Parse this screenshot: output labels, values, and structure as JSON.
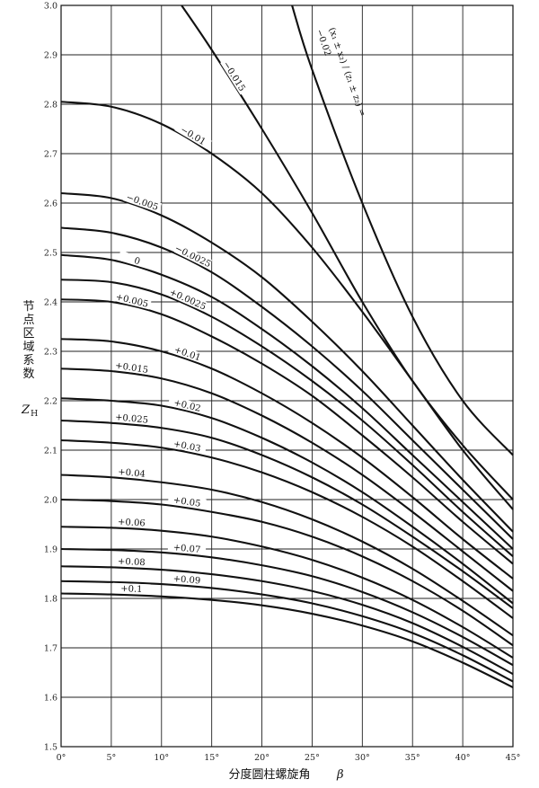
{
  "chart_data": {
    "type": "line",
    "title": "",
    "xlabel": "分度圆柱螺旋角",
    "xsymbol": "β",
    "ylabel": [
      "节",
      "点",
      "区",
      "域",
      "系",
      "数"
    ],
    "ysymbol": "Z",
    "ysymbol_sub": "H",
    "xlim": [
      0,
      45
    ],
    "ylim": [
      1.5,
      3.0
    ],
    "x_ticks": [
      0,
      5,
      10,
      15,
      20,
      25,
      30,
      35,
      40,
      45
    ],
    "x_tick_labels": [
      "0°",
      "5°",
      "10°",
      "15°",
      "20°",
      "25°",
      "30°",
      "35°",
      "40°",
      "45°"
    ],
    "y_ticks": [
      1.5,
      1.6,
      1.7,
      1.8,
      1.9,
      2.0,
      2.1,
      2.2,
      2.3,
      2.4,
      2.5,
      2.6,
      2.7,
      2.8,
      2.9,
      3.0
    ],
    "y_tick_labels": [
      "1.5",
      "1.6",
      "1.7",
      "1.8",
      "1.9",
      "2.0",
      "2.1",
      "2.2",
      "2.3",
      "2.4",
      "2.5",
      "2.6",
      "2.7",
      "2.8",
      "2.9",
      "3.0"
    ],
    "grid": true,
    "series_note_label": "(x₁ ± x₂) / (z₁ ± z₂) =",
    "series": [
      {
        "name": "−0.02",
        "x": [
          23.0,
          25,
          30,
          35,
          40,
          45
        ],
        "y": [
          3.0,
          2.87,
          2.6,
          2.37,
          2.2,
          2.09
        ]
      },
      {
        "name": "−0.015",
        "x": [
          12.0,
          15,
          20,
          25,
          30,
          35,
          40,
          45
        ],
        "y": [
          3.0,
          2.91,
          2.75,
          2.58,
          2.4,
          2.24,
          2.11,
          2.0
        ]
      },
      {
        "name": "−0.01",
        "x": [
          0,
          5,
          10,
          15,
          20,
          25,
          30,
          35,
          40,
          45
        ],
        "y": [
          2.805,
          2.795,
          2.76,
          2.7,
          2.62,
          2.51,
          2.38,
          2.24,
          2.1,
          1.98
        ]
      },
      {
        "name": "−0.005",
        "x": [
          0,
          5,
          10,
          15,
          20,
          25,
          30,
          35,
          40,
          45
        ],
        "y": [
          2.62,
          2.61,
          2.575,
          2.52,
          2.45,
          2.36,
          2.26,
          2.15,
          2.04,
          1.935
        ]
      },
      {
        "name": "−0.0025",
        "x": [
          0,
          5,
          10,
          15,
          20,
          25,
          30,
          35,
          40,
          45
        ],
        "y": [
          2.55,
          2.54,
          2.51,
          2.46,
          2.39,
          2.31,
          2.22,
          2.12,
          2.02,
          1.92
        ]
      },
      {
        "name": "0",
        "x": [
          0,
          5,
          10,
          15,
          20,
          25,
          30,
          35,
          40,
          45
        ],
        "y": [
          2.495,
          2.485,
          2.455,
          2.41,
          2.345,
          2.27,
          2.185,
          2.09,
          1.995,
          1.9
        ]
      },
      {
        "name": "+0.0025",
        "x": [
          0,
          5,
          10,
          15,
          20,
          25,
          30,
          35,
          40,
          45
        ],
        "y": [
          2.445,
          2.44,
          2.415,
          2.37,
          2.31,
          2.24,
          2.16,
          2.07,
          1.975,
          1.885
        ]
      },
      {
        "name": "+0.005",
        "x": [
          0,
          5,
          10,
          15,
          20,
          25,
          30,
          35,
          40,
          45
        ],
        "y": [
          2.405,
          2.4,
          2.375,
          2.33,
          2.275,
          2.21,
          2.13,
          2.045,
          1.955,
          1.87
        ]
      },
      {
        "name": "+0.01",
        "x": [
          0,
          5,
          10,
          15,
          20,
          25,
          30,
          35,
          40,
          45
        ],
        "y": [
          2.325,
          2.32,
          2.3,
          2.265,
          2.215,
          2.155,
          2.085,
          2.005,
          1.92,
          1.84
        ]
      },
      {
        "name": "+0.015",
        "x": [
          0,
          5,
          10,
          15,
          20,
          25,
          30,
          35,
          40,
          45
        ],
        "y": [
          2.265,
          2.26,
          2.245,
          2.215,
          2.17,
          2.115,
          2.05,
          1.975,
          1.895,
          1.815
        ]
      },
      {
        "name": "+0.02",
        "x": [
          0,
          5,
          10,
          15,
          20,
          25,
          30,
          35,
          40,
          45
        ],
        "y": [
          2.205,
          2.2,
          2.19,
          2.165,
          2.125,
          2.075,
          2.015,
          1.945,
          1.87,
          1.79
        ]
      },
      {
        "name": "+0.025",
        "x": [
          0,
          5,
          10,
          15,
          20,
          25,
          30,
          35,
          40,
          45
        ],
        "y": [
          2.16,
          2.155,
          2.145,
          2.125,
          2.09,
          2.045,
          1.99,
          1.925,
          1.855,
          1.78
        ]
      },
      {
        "name": "+0.03",
        "x": [
          0,
          5,
          10,
          15,
          20,
          25,
          30,
          35,
          40,
          45
        ],
        "y": [
          2.12,
          2.115,
          2.105,
          2.085,
          2.055,
          2.015,
          1.965,
          1.905,
          1.835,
          1.76
        ]
      },
      {
        "name": "+0.04",
        "x": [
          0,
          5,
          10,
          15,
          20,
          25,
          30,
          35,
          40,
          45
        ],
        "y": [
          2.05,
          2.045,
          2.035,
          2.02,
          1.995,
          1.96,
          1.915,
          1.86,
          1.795,
          1.725
        ]
      },
      {
        "name": "+0.05",
        "x": [
          0,
          5,
          10,
          15,
          20,
          25,
          30,
          35,
          40,
          45
        ],
        "y": [
          2.0,
          1.997,
          1.99,
          1.975,
          1.955,
          1.925,
          1.885,
          1.835,
          1.775,
          1.705
        ]
      },
      {
        "name": "+0.06",
        "x": [
          0,
          5,
          10,
          15,
          20,
          25,
          30,
          35,
          40,
          45
        ],
        "y": [
          1.945,
          1.943,
          1.937,
          1.925,
          1.905,
          1.878,
          1.842,
          1.797,
          1.742,
          1.68
        ]
      },
      {
        "name": "+0.07",
        "x": [
          0,
          5,
          10,
          15,
          20,
          25,
          30,
          35,
          40,
          45
        ],
        "y": [
          1.9,
          1.898,
          1.893,
          1.883,
          1.867,
          1.845,
          1.813,
          1.772,
          1.722,
          1.665
        ]
      },
      {
        "name": "+0.08",
        "x": [
          0,
          5,
          10,
          15,
          20,
          25,
          30,
          35,
          40,
          45
        ],
        "y": [
          1.865,
          1.863,
          1.858,
          1.849,
          1.835,
          1.815,
          1.787,
          1.75,
          1.702,
          1.647
        ]
      },
      {
        "name": "+0.09",
        "x": [
          0,
          5,
          10,
          15,
          20,
          25,
          30,
          35,
          40,
          45
        ],
        "y": [
          1.835,
          1.833,
          1.829,
          1.821,
          1.808,
          1.79,
          1.764,
          1.73,
          1.685,
          1.632
        ]
      },
      {
        "name": "+0.1",
        "x": [
          0,
          5,
          10,
          15,
          20,
          25,
          30,
          35,
          40,
          45
        ],
        "y": [
          1.81,
          1.808,
          1.804,
          1.797,
          1.786,
          1.769,
          1.745,
          1.713,
          1.67,
          1.62
        ]
      }
    ]
  }
}
